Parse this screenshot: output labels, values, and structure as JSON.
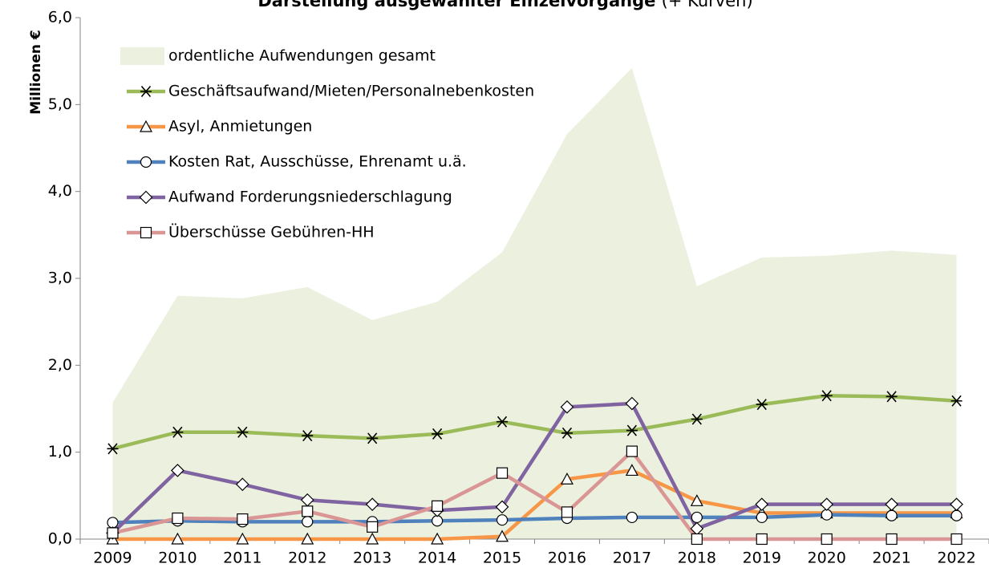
{
  "chart_data": {
    "type": "line",
    "title": "Darstellung ausgewählter Einzelvorgänge",
    "subtitle": "(+ Kurven)",
    "y_label": "Millionen €",
    "categories": [
      "2009",
      "2010",
      "2011",
      "2012",
      "2013",
      "2014",
      "2015",
      "2016",
      "2017",
      "2018",
      "2019",
      "2020",
      "2021",
      "2022"
    ],
    "ylim": [
      0,
      6
    ],
    "yticks": [
      {
        "value": 0,
        "label": "0,0"
      },
      {
        "value": 1,
        "label": "1,0"
      },
      {
        "value": 2,
        "label": "2,0"
      },
      {
        "value": 3,
        "label": "3,0"
      },
      {
        "value": 4,
        "label": "4,0"
      },
      {
        "value": 5,
        "label": "5,0"
      },
      {
        "value": 6,
        "label": "6,0"
      }
    ],
    "legend": "top-left",
    "series": [
      {
        "name": "ordentliche Aufwendungen gesamt",
        "kind": "area",
        "color": "#ebf1de",
        "values": [
          1.57,
          2.8,
          2.77,
          2.9,
          2.52,
          2.73,
          3.3,
          4.66,
          5.42,
          2.91,
          3.24,
          3.26,
          3.32,
          3.27
        ]
      },
      {
        "name": "Geschäftsaufwand/Mieten/Personalnebenkosten",
        "color": "#9bbb59",
        "marker": "star",
        "values": [
          1.04,
          1.23,
          1.23,
          1.19,
          1.16,
          1.21,
          1.35,
          1.22,
          1.25,
          1.38,
          1.55,
          1.65,
          1.64,
          1.59
        ]
      },
      {
        "name": "Asyl, Anmietungen",
        "color": "#f79646",
        "marker": "triangle",
        "values": [
          0,
          0,
          0,
          0,
          0,
          0,
          0.03,
          0.69,
          0.79,
          0.44,
          0.3,
          0.3,
          0.3,
          0.3
        ]
      },
      {
        "name": "Kosten Rat, Ausschüsse, Ehrenamt u.ä.",
        "color": "#4f81bd",
        "marker": "circle",
        "values": [
          0.19,
          0.21,
          0.2,
          0.2,
          0.2,
          0.21,
          0.22,
          0.24,
          0.25,
          0.25,
          0.25,
          0.28,
          0.27,
          0.27
        ]
      },
      {
        "name": "Aufwand Forderungsniederschlagung",
        "color": "#8064a2",
        "marker": "diamond",
        "values": [
          0.07,
          0.79,
          0.63,
          0.45,
          0.4,
          0.33,
          0.37,
          1.52,
          1.56,
          0.12,
          0.4,
          0.4,
          0.4,
          0.4
        ]
      },
      {
        "name": "Überschüsse Gebühren-HH",
        "color": "#d99694",
        "marker": "square",
        "values": [
          0.07,
          0.24,
          0.23,
          0.32,
          0.14,
          0.38,
          0.76,
          0.31,
          1.01,
          0,
          0,
          0,
          0,
          0
        ]
      }
    ]
  }
}
